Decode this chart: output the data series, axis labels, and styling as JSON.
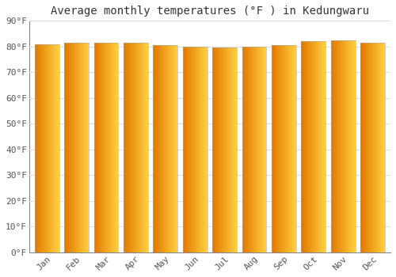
{
  "title": "Average monthly temperatures (°F ) in Kedungwaru",
  "months": [
    "Jan",
    "Feb",
    "Mar",
    "Apr",
    "May",
    "Jun",
    "Jul",
    "Aug",
    "Sep",
    "Oct",
    "Nov",
    "Dec"
  ],
  "values": [
    81,
    81.5,
    81.5,
    81.5,
    80.5,
    80,
    79.5,
    80,
    80.5,
    82,
    82.5,
    81.5
  ],
  "bar_color_left": "#E07800",
  "bar_color_right": "#FFD040",
  "ylim": [
    0,
    90
  ],
  "yticks": [
    0,
    10,
    20,
    30,
    40,
    50,
    60,
    70,
    80,
    90
  ],
  "ytick_labels": [
    "0°F",
    "10°F",
    "20°F",
    "30°F",
    "40°F",
    "50°F",
    "60°F",
    "70°F",
    "80°F",
    "90°F"
  ],
  "background_color": "#ffffff",
  "plot_bg_color": "#ffffff",
  "grid_color": "#dddddd",
  "title_fontsize": 10,
  "tick_fontsize": 8,
  "bar_width": 0.82,
  "gradient_steps": 50
}
